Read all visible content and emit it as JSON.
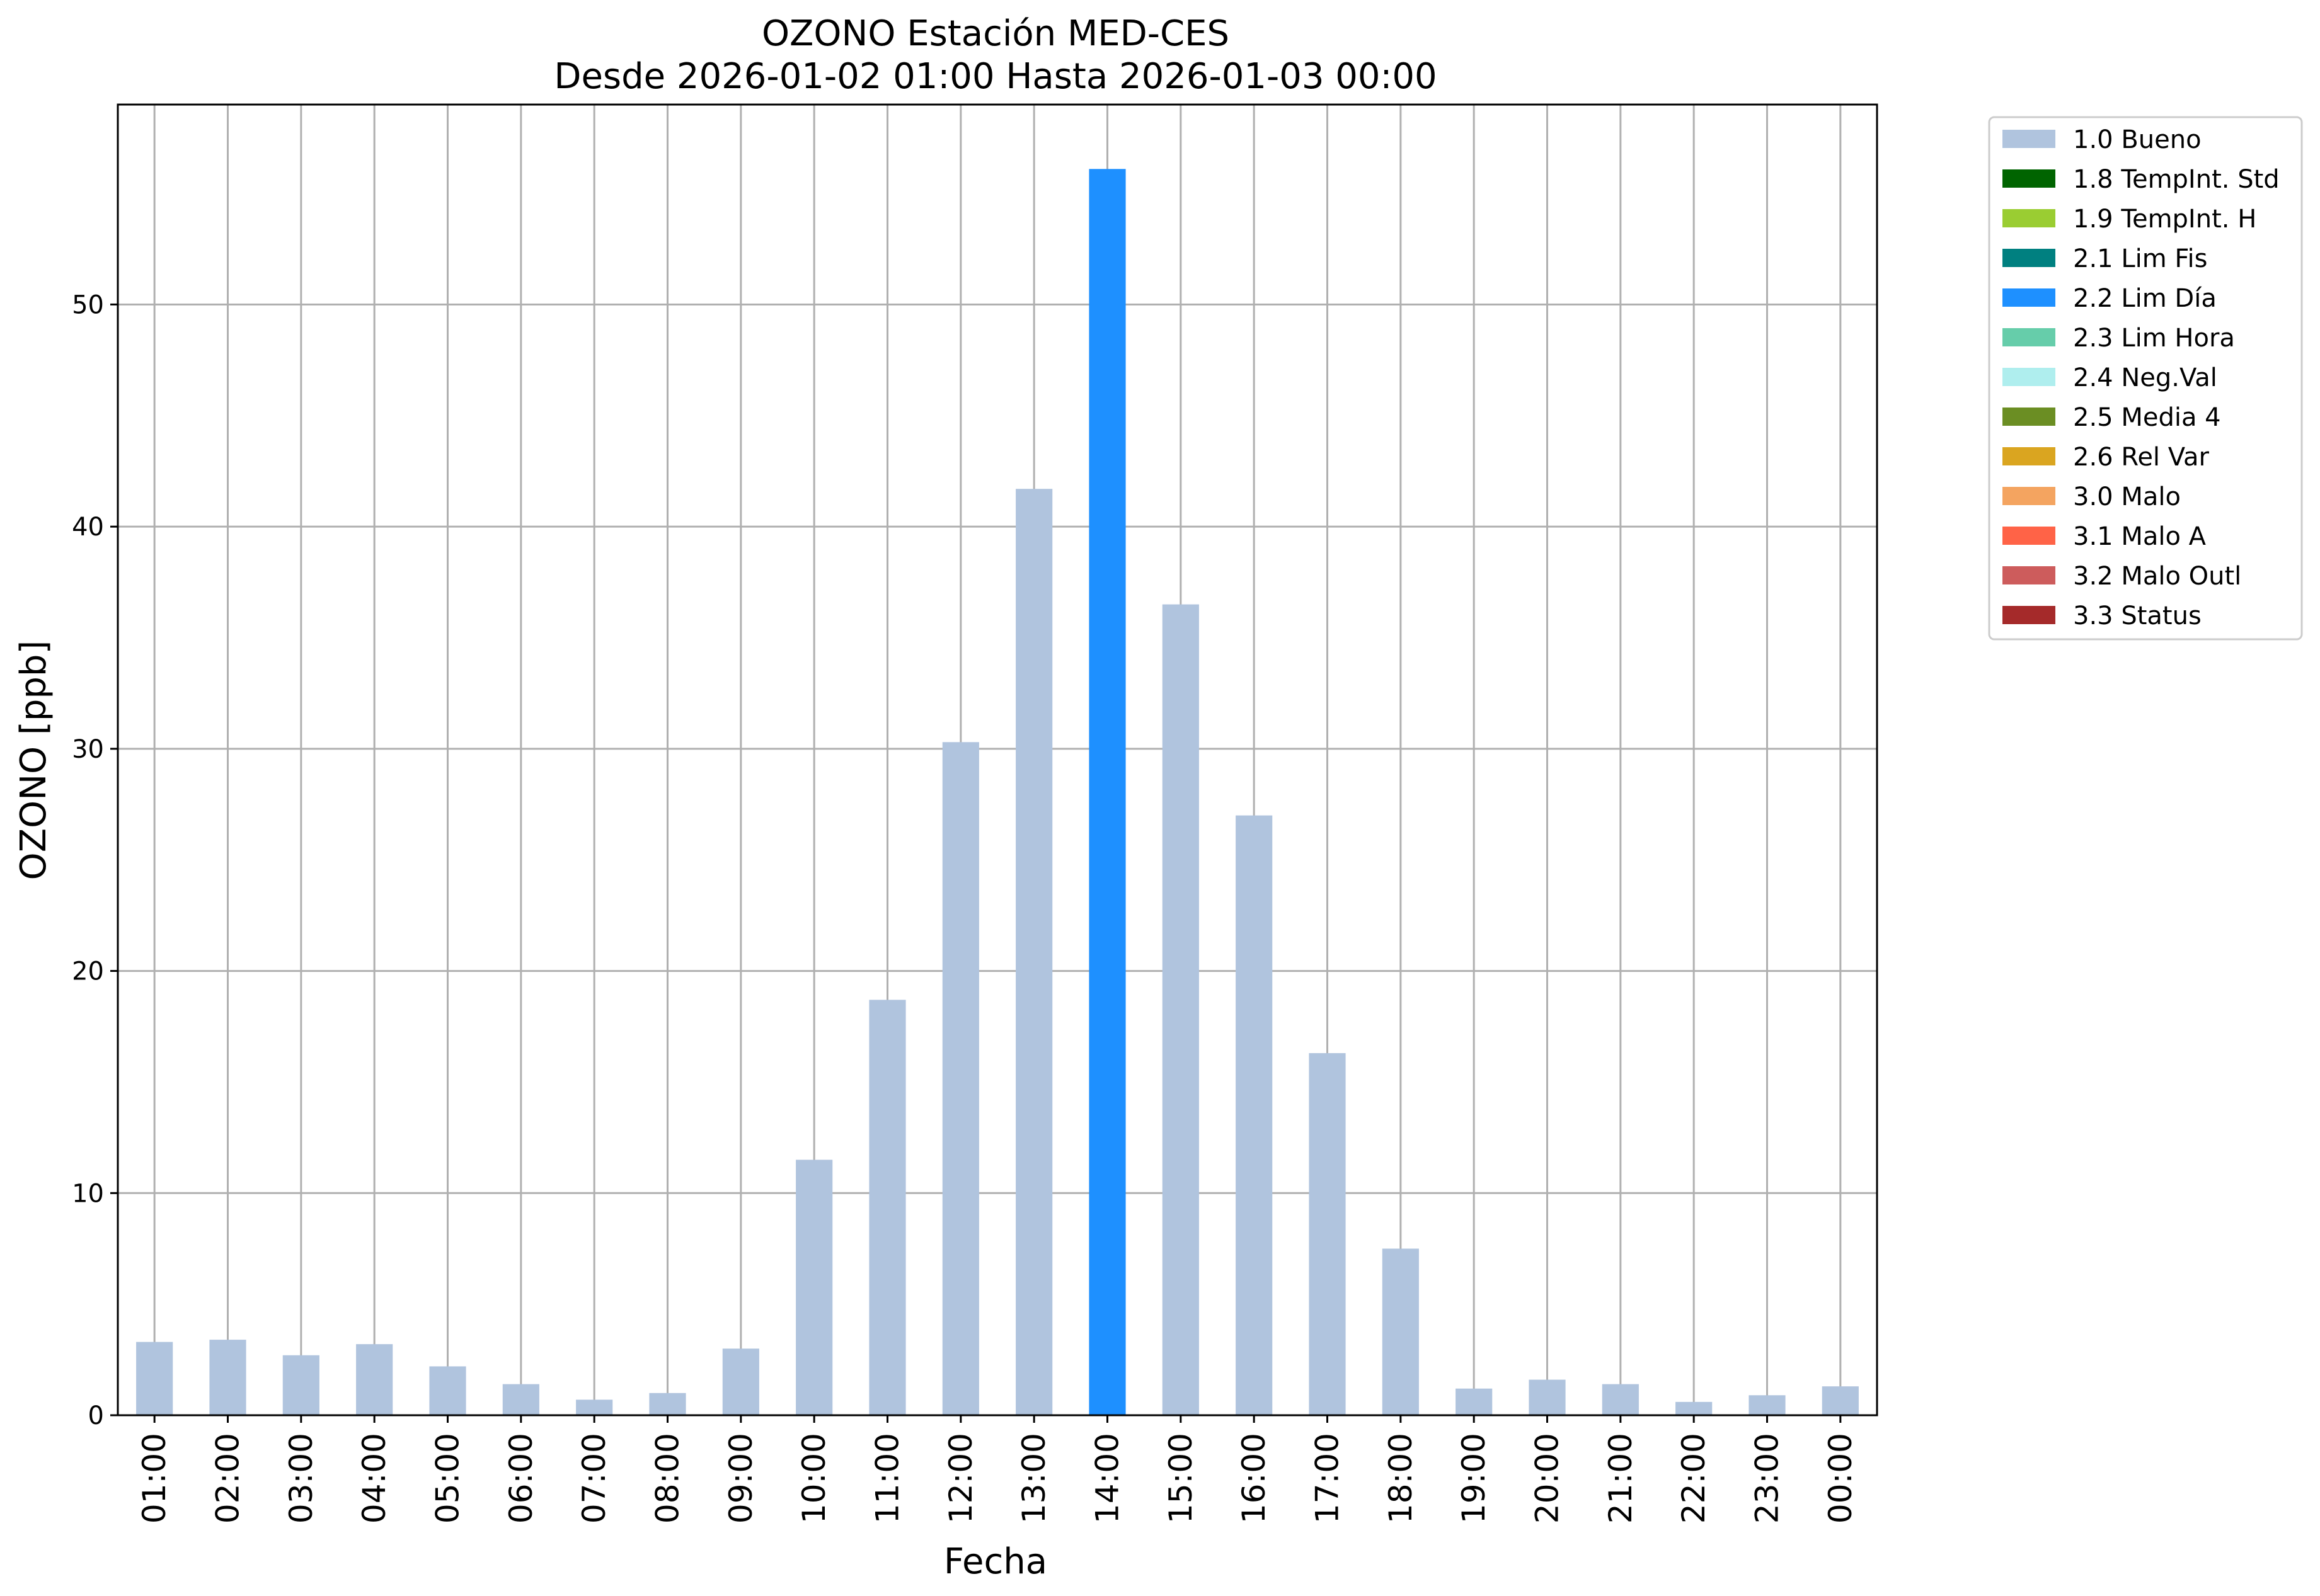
{
  "chart_data": {
    "type": "bar",
    "title": "OZONO Estación MED-CES",
    "subtitle": "Desde 2026-01-02 01:00 Hasta 2026-01-03 00:00",
    "xlabel": "Fecha",
    "ylabel": "OZONO [ppb]",
    "ylim": [
      0,
      59
    ],
    "yticks": [
      0,
      10,
      20,
      30,
      40,
      50
    ],
    "grid": true,
    "legend_position": "outside-top-right",
    "categories": [
      "01:00",
      "02:00",
      "03:00",
      "04:00",
      "05:00",
      "06:00",
      "07:00",
      "08:00",
      "09:00",
      "10:00",
      "11:00",
      "12:00",
      "13:00",
      "14:00",
      "15:00",
      "16:00",
      "17:00",
      "18:00",
      "19:00",
      "20:00",
      "21:00",
      "22:00",
      "23:00",
      "00:00"
    ],
    "values": [
      3.3,
      3.4,
      2.7,
      3.2,
      2.2,
      1.4,
      0.7,
      1.0,
      3.0,
      11.5,
      18.7,
      30.3,
      41.7,
      56.1,
      36.5,
      27.0,
      16.3,
      7.5,
      1.2,
      1.6,
      1.4,
      0.6,
      0.9,
      1.3
    ],
    "flags": [
      "1.0 Bueno",
      "1.0 Bueno",
      "1.0 Bueno",
      "1.0 Bueno",
      "1.0 Bueno",
      "1.0 Bueno",
      "1.0 Bueno",
      "1.0 Bueno",
      "1.0 Bueno",
      "1.0 Bueno",
      "1.0 Bueno",
      "1.0 Bueno",
      "1.0 Bueno",
      "2.2 Lim Día",
      "1.0 Bueno",
      "1.0 Bueno",
      "1.0 Bueno",
      "1.0 Bueno",
      "1.0 Bueno",
      "1.0 Bueno",
      "1.0 Bueno",
      "1.0 Bueno",
      "1.0 Bueno",
      "1.0 Bueno"
    ],
    "legend": [
      {
        "label": "1.0 Bueno",
        "color": "#b0c4de"
      },
      {
        "label": "1.8 TempInt. Std",
        "color": "#006400"
      },
      {
        "label": "1.9 TempInt. H",
        "color": "#9acd32"
      },
      {
        "label": "2.1 Lim Fis",
        "color": "#008080"
      },
      {
        "label": "2.2 Lim Día",
        "color": "#1e90ff"
      },
      {
        "label": "2.3 Lim Hora",
        "color": "#66cdaa"
      },
      {
        "label": "2.4 Neg.Val",
        "color": "#afeeee"
      },
      {
        "label": "2.5 Media 4",
        "color": "#6b8e23"
      },
      {
        "label": "2.6 Rel Var",
        "color": "#daa520"
      },
      {
        "label": "3.0 Malo",
        "color": "#f4a460"
      },
      {
        "label": "3.1 Malo A",
        "color": "#ff6347"
      },
      {
        "label": "3.2 Malo Outl",
        "color": "#cd5c5c"
      },
      {
        "label": "3.3 Status",
        "color": "#a52a2a"
      }
    ],
    "grid_color": "#b0b0b0"
  }
}
